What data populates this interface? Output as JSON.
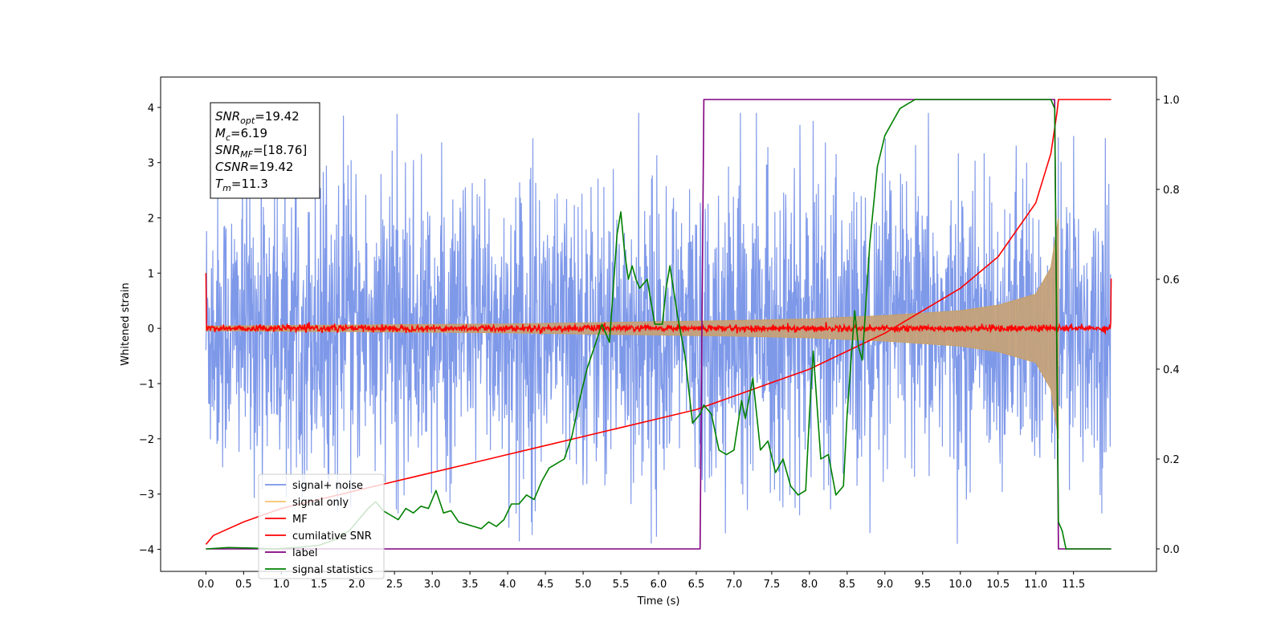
{
  "chart_data": {
    "type": "line",
    "xlabel": "Time (s)",
    "ylabel": "Whitened strain",
    "xlim": [
      -0.6,
      12.6
    ],
    "ylim": [
      -4.4,
      4.55
    ],
    "y2lim": [
      -0.05,
      1.05
    ],
    "x_ticks": [
      0.0,
      0.5,
      1.0,
      1.5,
      2.0,
      2.5,
      3.0,
      3.5,
      4.0,
      4.5,
      5.0,
      5.5,
      6.0,
      6.5,
      7.0,
      7.5,
      8.0,
      8.5,
      9.0,
      9.5,
      10.0,
      10.5,
      11.0,
      11.5
    ],
    "x_tick_labels": [
      "0.0",
      "0.5",
      "1.0",
      "1.5",
      "2.0",
      "2.5",
      "3.0",
      "3.5",
      "4.0",
      "4.5",
      "5.0",
      "5.5",
      "6.0",
      "6.5",
      "7.0",
      "7.5",
      "8.0",
      "8.5",
      "9.0",
      "9.5",
      "10.0",
      "10.5",
      "11.0",
      "11.5"
    ],
    "y_ticks": [
      -4,
      -3,
      -2,
      -1,
      0,
      1,
      2,
      3,
      4
    ],
    "y_tick_labels": [
      "−4",
      "−3",
      "−2",
      "−1",
      "0",
      "1",
      "2",
      "3",
      "4"
    ],
    "y2_ticks": [
      0.0,
      0.2,
      0.4,
      0.6,
      0.8,
      1.0
    ],
    "y2_tick_labels": [
      "0.0",
      "0.2",
      "0.4",
      "0.6",
      "0.8",
      "1.0"
    ],
    "grid": false,
    "legend_placement": "lower-left",
    "annotation": [
      {
        "sym": "SNR",
        "sub": "opt",
        "rest": "=19.42"
      },
      {
        "sym": "M",
        "sub": "c",
        "rest": "=6.19"
      },
      {
        "sym": "SNR",
        "sub": "MF",
        "rest": "=[18.76]"
      },
      {
        "sym": "CSNR",
        "sub": "",
        "rest": "=19.42"
      },
      {
        "sym": "T",
        "sub": "m",
        "rest": "=11.3"
      }
    ],
    "series": [
      {
        "name": "signal+ noise",
        "color": "#7893e8",
        "axis": "left",
        "kind": "noise-band",
        "x_range": [
          0.0,
          12.0
        ],
        "typical_amplitude": 2.3,
        "peak_amplitude": 3.9
      },
      {
        "name": "signal only",
        "color": "#c4a17a",
        "axis": "left",
        "kind": "chirp-envelope",
        "x_range": [
          0.0,
          11.3
        ],
        "x": [
          0.0,
          2.0,
          4.0,
          6.0,
          7.0,
          8.0,
          9.0,
          10.0,
          10.5,
          11.0,
          11.2,
          11.3
        ],
        "y": [
          0.04,
          0.06,
          0.08,
          0.12,
          0.14,
          0.17,
          0.23,
          0.32,
          0.42,
          0.62,
          1.1,
          2.0
        ]
      },
      {
        "name": "MF",
        "color": "#ff0000",
        "axis": "left",
        "kind": "noise-band",
        "x_range": [
          0.0,
          12.0
        ],
        "typical_amplitude": 0.06,
        "peak_amplitude": 0.13,
        "x": [
          0.0,
          0.02,
          11.98,
          12.0
        ],
        "y": [
          1.0,
          0.1,
          0.1,
          0.9
        ]
      },
      {
        "name": "cumilative SNR",
        "color": "#ff0000",
        "axis": "right",
        "x": [
          0.0,
          0.1,
          0.5,
          1.0,
          1.5,
          2.0,
          2.5,
          3.0,
          3.5,
          4.0,
          4.5,
          5.0,
          5.5,
          6.0,
          6.5,
          7.0,
          7.5,
          8.0,
          8.5,
          9.0,
          9.5,
          10.0,
          10.5,
          11.0,
          11.2,
          11.28,
          11.3,
          12.0
        ],
        "y": [
          0.01,
          0.03,
          0.06,
          0.09,
          0.11,
          0.13,
          0.15,
          0.17,
          0.19,
          0.21,
          0.23,
          0.25,
          0.27,
          0.29,
          0.31,
          0.34,
          0.37,
          0.4,
          0.44,
          0.48,
          0.53,
          0.58,
          0.65,
          0.77,
          0.88,
          0.97,
          1.0,
          1.0
        ]
      },
      {
        "name": "label",
        "color": "#800080",
        "axis": "right",
        "x": [
          0.0,
          6.55,
          6.6,
          11.25,
          11.3,
          12.0
        ],
        "y": [
          0.0,
          0.0,
          1.0,
          1.0,
          0.0,
          0.0
        ]
      },
      {
        "name": "signal statistics",
        "color": "#008000",
        "axis": "right",
        "x": [
          0.0,
          0.3,
          0.6,
          0.9,
          1.2,
          1.5,
          1.7,
          1.9,
          2.0,
          2.1,
          2.15,
          2.25,
          2.35,
          2.45,
          2.55,
          2.65,
          2.75,
          2.85,
          2.95,
          3.05,
          3.15,
          3.25,
          3.35,
          3.45,
          3.55,
          3.65,
          3.75,
          3.85,
          3.95,
          4.05,
          4.15,
          4.25,
          4.35,
          4.45,
          4.55,
          4.65,
          4.75,
          4.85,
          4.95,
          5.05,
          5.15,
          5.25,
          5.3,
          5.35,
          5.45,
          5.5,
          5.55,
          5.6,
          5.65,
          5.7,
          5.75,
          5.85,
          5.95,
          6.05,
          6.1,
          6.15,
          6.25,
          6.35,
          6.45,
          6.55,
          6.6,
          6.65,
          6.7,
          6.8,
          6.9,
          7.0,
          7.1,
          7.15,
          7.25,
          7.35,
          7.45,
          7.55,
          7.65,
          7.75,
          7.85,
          7.95,
          8.0,
          8.05,
          8.15,
          8.25,
          8.35,
          8.45,
          8.5,
          8.6,
          8.65,
          8.7,
          8.8,
          8.9,
          9.0,
          9.1,
          9.2,
          9.3,
          9.4,
          9.5,
          9.7,
          10.0,
          10.5,
          11.0,
          11.2,
          11.25,
          11.3,
          11.35,
          11.4,
          11.5,
          12.0
        ],
        "y": [
          0.0,
          0.003,
          0.002,
          0.0,
          0.003,
          0.008,
          0.02,
          0.04,
          0.06,
          0.08,
          0.09,
          0.105,
          0.085,
          0.075,
          0.065,
          0.09,
          0.08,
          0.095,
          0.09,
          0.13,
          0.08,
          0.085,
          0.06,
          0.055,
          0.05,
          0.045,
          0.06,
          0.05,
          0.065,
          0.1,
          0.1,
          0.12,
          0.11,
          0.15,
          0.18,
          0.19,
          0.2,
          0.25,
          0.33,
          0.4,
          0.45,
          0.5,
          0.48,
          0.46,
          0.7,
          0.75,
          0.66,
          0.6,
          0.63,
          0.6,
          0.58,
          0.6,
          0.5,
          0.5,
          0.58,
          0.63,
          0.52,
          0.43,
          0.28,
          0.3,
          0.32,
          0.31,
          0.3,
          0.22,
          0.21,
          0.22,
          0.33,
          0.29,
          0.38,
          0.22,
          0.24,
          0.17,
          0.2,
          0.14,
          0.12,
          0.13,
          0.3,
          0.44,
          0.2,
          0.21,
          0.12,
          0.14,
          0.3,
          0.53,
          0.45,
          0.42,
          0.68,
          0.85,
          0.92,
          0.95,
          0.98,
          0.99,
          1.0,
          1.0,
          1.0,
          1.0,
          1.0,
          1.0,
          1.0,
          0.98,
          0.06,
          0.04,
          0.0,
          0.0,
          0.0
        ]
      }
    ]
  }
}
